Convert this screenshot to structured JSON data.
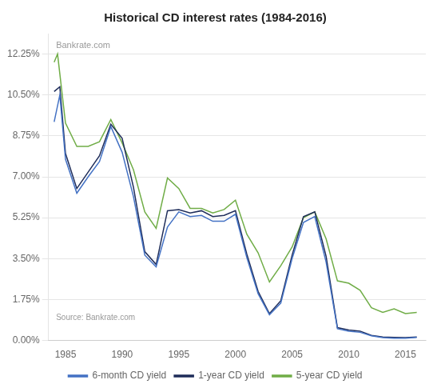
{
  "chart_data": {
    "type": "line",
    "title": "Historical CD interest rates (1984-2016)",
    "annotations": [
      "Bankrate.com",
      "Source: Bankrate.com"
    ],
    "xlim": [
      1983.5,
      2016.8
    ],
    "xticks": [
      1985,
      1990,
      1995,
      2000,
      2005,
      2010,
      2015
    ],
    "ylim": [
      0.0,
      13.125
    ],
    "yticks": [
      {
        "value": 0.0,
        "label": "0.00%"
      },
      {
        "value": 1.75,
        "label": "1.75%"
      },
      {
        "value": 3.5,
        "label": "3.50%"
      },
      {
        "value": 5.25,
        "label": "5.25%"
      },
      {
        "value": 7.0,
        "label": "7.00%"
      },
      {
        "value": 8.75,
        "label": "8.75%"
      },
      {
        "value": 10.5,
        "label": "10.50%"
      },
      {
        "value": 12.25,
        "label": "12.25%"
      }
    ],
    "grid": "y",
    "legend": "bottom",
    "series": [
      {
        "name": "6-month CD yield",
        "color": "#4472C4",
        "x": [
          1984,
          1984.5,
          1985,
          1986,
          1987,
          1988,
          1989,
          1990,
          1991,
          1992,
          1993,
          1994,
          1995,
          1996,
          1997,
          1998,
          1999,
          2000,
          2001,
          2002,
          2003,
          2004,
          2005,
          2006,
          2007,
          2008,
          2009,
          2010,
          2011,
          2012,
          2013,
          2014,
          2015,
          2016
        ],
        "values": [
          9.35,
          10.5,
          7.75,
          6.3,
          7.0,
          7.65,
          9.15,
          8.05,
          6.15,
          3.65,
          3.15,
          4.85,
          5.5,
          5.3,
          5.35,
          5.1,
          5.1,
          5.4,
          3.55,
          2.0,
          1.1,
          1.6,
          3.5,
          5.05,
          5.3,
          3.35,
          0.5,
          0.4,
          0.35,
          0.2,
          0.12,
          0.1,
          0.1,
          0.13
        ]
      },
      {
        "name": "1-year CD yield",
        "color": "#1F2D5A",
        "x": [
          1984,
          1984.5,
          1985,
          1986,
          1987,
          1988,
          1989,
          1990,
          1991,
          1992,
          1993,
          1994,
          1995,
          1996,
          1997,
          1998,
          1999,
          2000,
          2001,
          2002,
          2003,
          2004,
          2005,
          2006,
          2007,
          2008,
          2009,
          2010,
          2011,
          2012,
          2013,
          2014,
          2015,
          2016
        ],
        "values": [
          10.65,
          10.85,
          8.0,
          6.5,
          7.2,
          7.9,
          9.25,
          8.65,
          6.55,
          3.8,
          3.25,
          5.55,
          5.6,
          5.45,
          5.55,
          5.3,
          5.35,
          5.55,
          3.7,
          2.1,
          1.15,
          1.7,
          3.65,
          5.3,
          5.5,
          3.6,
          0.55,
          0.45,
          0.4,
          0.22,
          0.15,
          0.13,
          0.12,
          0.15
        ]
      },
      {
        "name": "5-year CD yield",
        "color": "#70AD47",
        "x": [
          1984,
          1984.3,
          1985,
          1986,
          1987,
          1988,
          1989,
          1990,
          1991,
          1992,
          1993,
          1994,
          1995,
          1996,
          1997,
          1998,
          1999,
          2000,
          2001,
          2002,
          2003,
          2004,
          2005,
          2006,
          2007,
          2008,
          2009,
          2010,
          2011,
          2012,
          2013,
          2014,
          2015,
          2016
        ],
        "values": [
          11.9,
          12.25,
          9.3,
          8.3,
          8.3,
          8.5,
          9.45,
          8.45,
          7.3,
          5.5,
          4.8,
          6.95,
          6.5,
          5.65,
          5.65,
          5.45,
          5.6,
          6.0,
          4.55,
          3.75,
          2.5,
          3.2,
          4.0,
          5.25,
          5.5,
          4.35,
          2.55,
          2.45,
          2.15,
          1.4,
          1.2,
          1.35,
          1.15,
          1.2
        ]
      }
    ]
  }
}
